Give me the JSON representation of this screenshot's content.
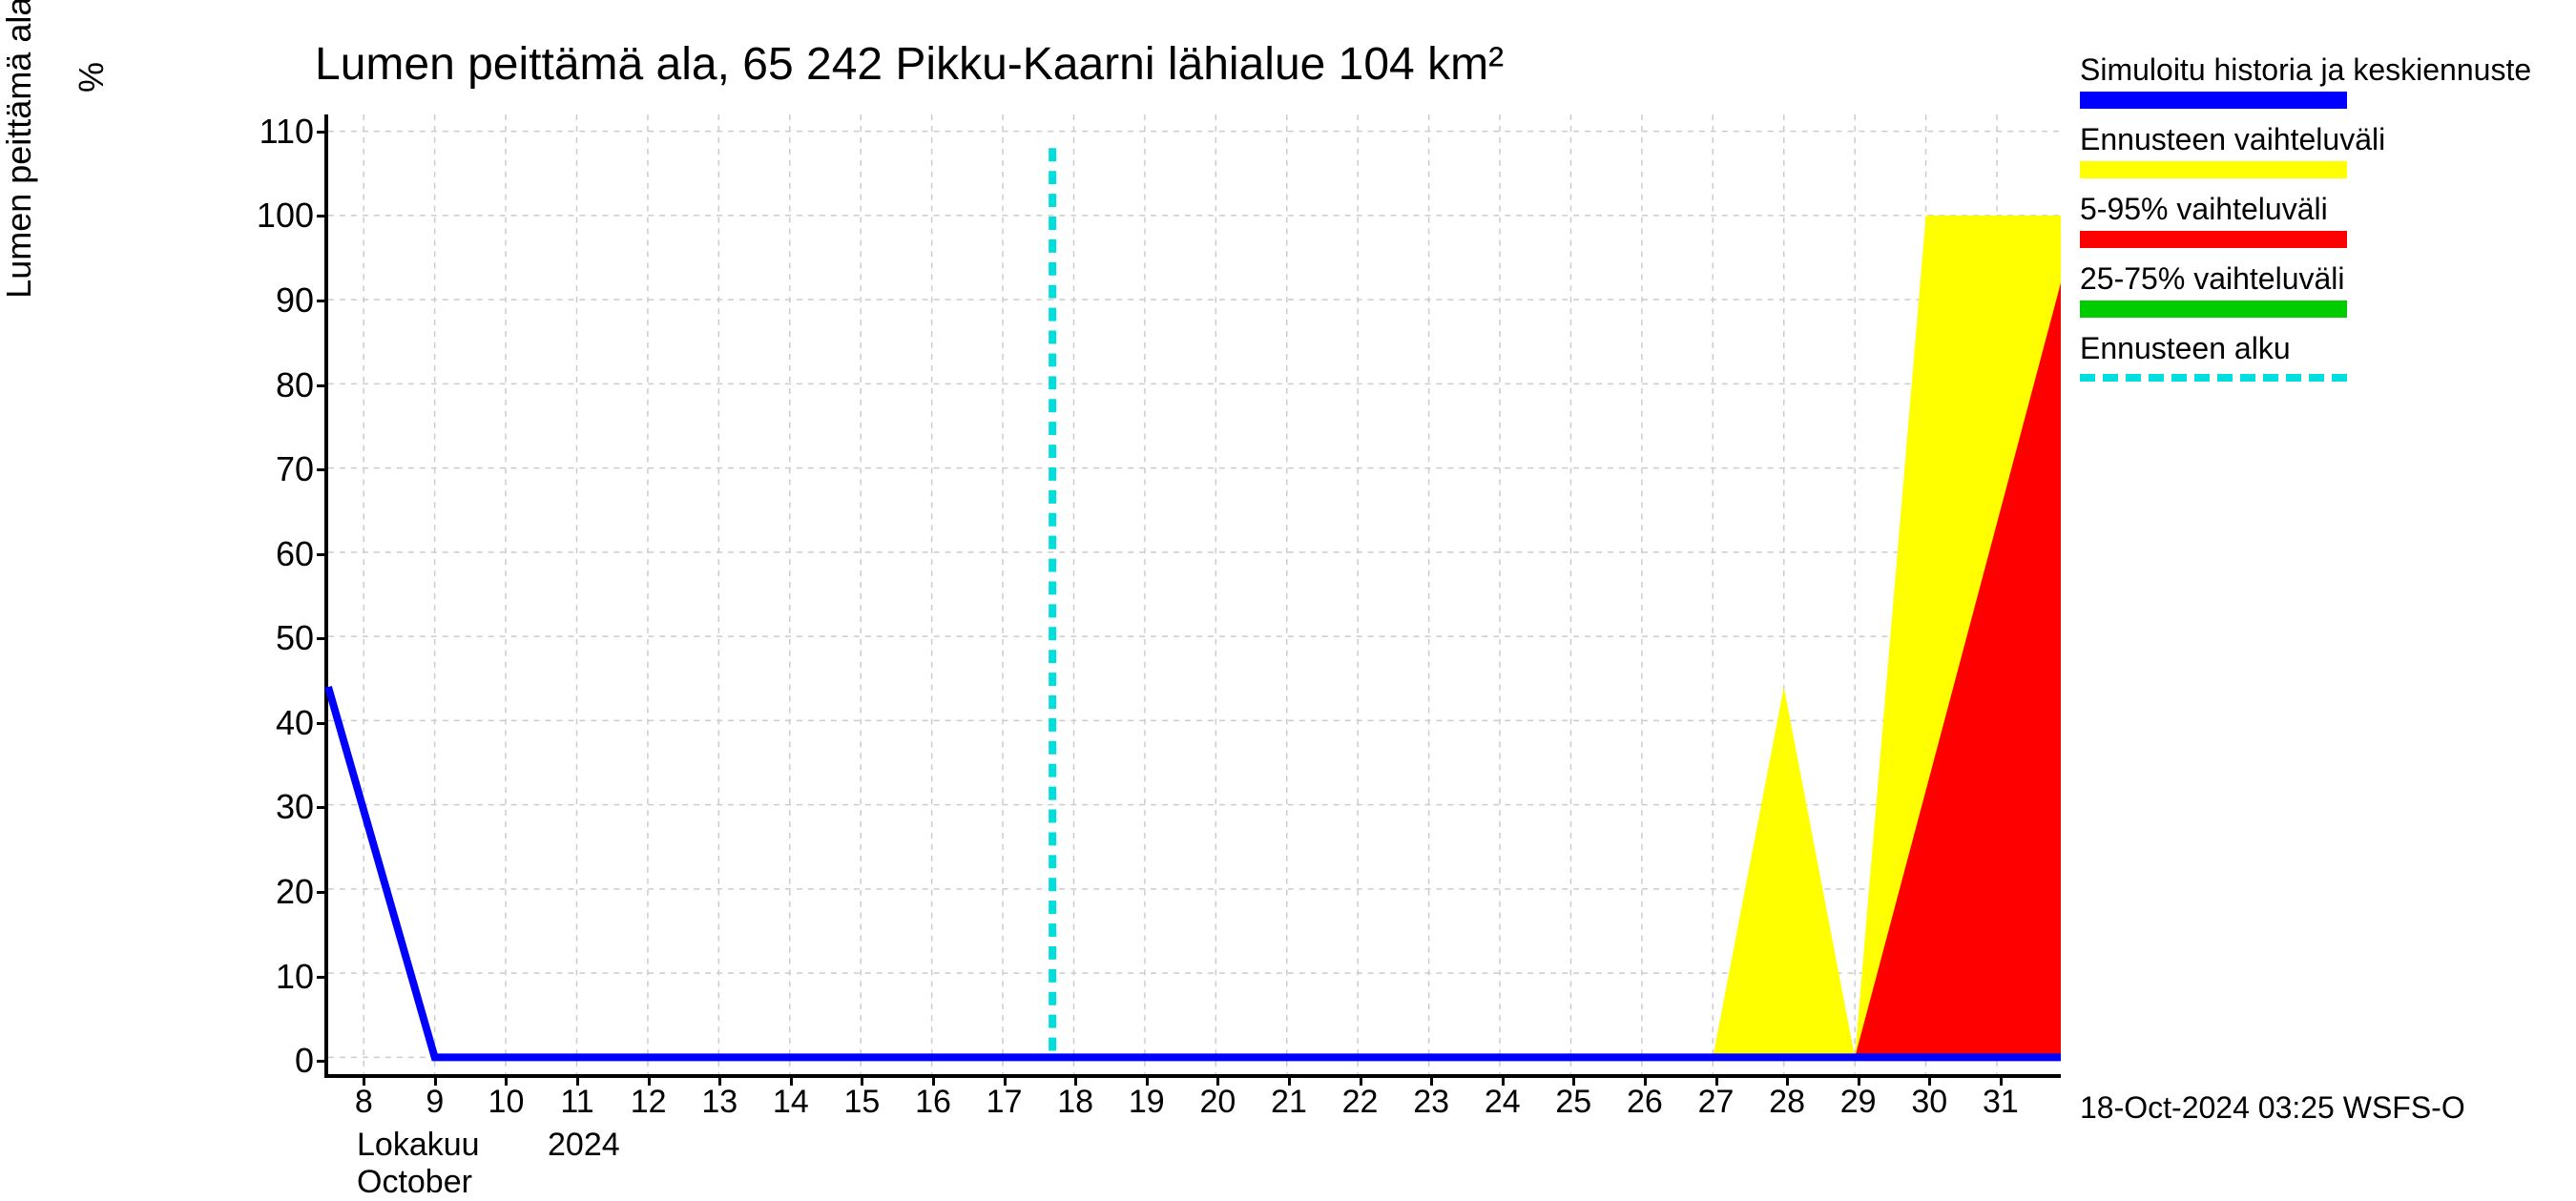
{
  "chart": {
    "title": "Lumen peittämä ala, 65 242 Pikku-Kaarni lähialue 104 km²",
    "y_axis_label": "Lumen peittämä ala / Snow cover area",
    "y_axis_unit": "%",
    "x_month_fi": "Lokakuu",
    "x_month_en": "October",
    "x_year": "2024",
    "timestamp": "18-Oct-2024 03:25 WSFS-O",
    "background_color": "#ffffff",
    "plot_background_color": "#ffffff",
    "grid_color": "#cccccc",
    "axis_color": "#000000",
    "text_color": "#000000",
    "title_fontsize": 48,
    "label_fontsize": 36,
    "tick_fontsize": 34,
    "y_min": -2,
    "y_max": 112,
    "y_ticks": [
      0,
      10,
      20,
      30,
      40,
      50,
      60,
      70,
      80,
      90,
      100,
      110
    ],
    "x_min": 7.5,
    "x_max": 31.9,
    "x_ticks": [
      8,
      9,
      10,
      11,
      12,
      13,
      14,
      15,
      16,
      17,
      18,
      19,
      20,
      21,
      22,
      23,
      24,
      25,
      26,
      27,
      28,
      29,
      30,
      31
    ],
    "forecast_start_x": 17.7,
    "series": {
      "simulated": {
        "color": "#0000ff",
        "width": 8,
        "points": [
          {
            "x": 7.5,
            "y": 44
          },
          {
            "x": 9.0,
            "y": 0
          },
          {
            "x": 31.9,
            "y": 0
          }
        ]
      },
      "yellow_band": {
        "color": "#ffff00",
        "polygons": [
          [
            {
              "x": 27.0,
              "y": 0
            },
            {
              "x": 28.0,
              "y": 44
            },
            {
              "x": 29.0,
              "y": 0
            }
          ],
          [
            {
              "x": 29.0,
              "y": 0
            },
            {
              "x": 30.0,
              "y": 100
            },
            {
              "x": 31.9,
              "y": 100
            },
            {
              "x": 31.9,
              "y": 0
            }
          ]
        ]
      },
      "red_band": {
        "color": "#ff0000",
        "polygons": [
          [
            {
              "x": 29.0,
              "y": 0
            },
            {
              "x": 31.9,
              "y": 92
            },
            {
              "x": 31.9,
              "y": 0
            }
          ]
        ]
      },
      "forecast_start_line": {
        "color": "#00dddd",
        "width": 8,
        "dash": "14,10"
      }
    }
  },
  "legend": {
    "items": [
      {
        "label": "Simuloitu historia ja keskiennuste",
        "color": "#0000ff",
        "type": "solid"
      },
      {
        "label": "Ennusteen vaihteluväli",
        "color": "#ffff00",
        "type": "solid"
      },
      {
        "label": "5-95% vaihteluväli",
        "color": "#ff0000",
        "type": "solid"
      },
      {
        "label": "25-75% vaihteluväli",
        "color": "#00cc00",
        "type": "solid"
      },
      {
        "label": "Ennusteen alku",
        "color": "#00dddd",
        "type": "dashed"
      }
    ]
  }
}
